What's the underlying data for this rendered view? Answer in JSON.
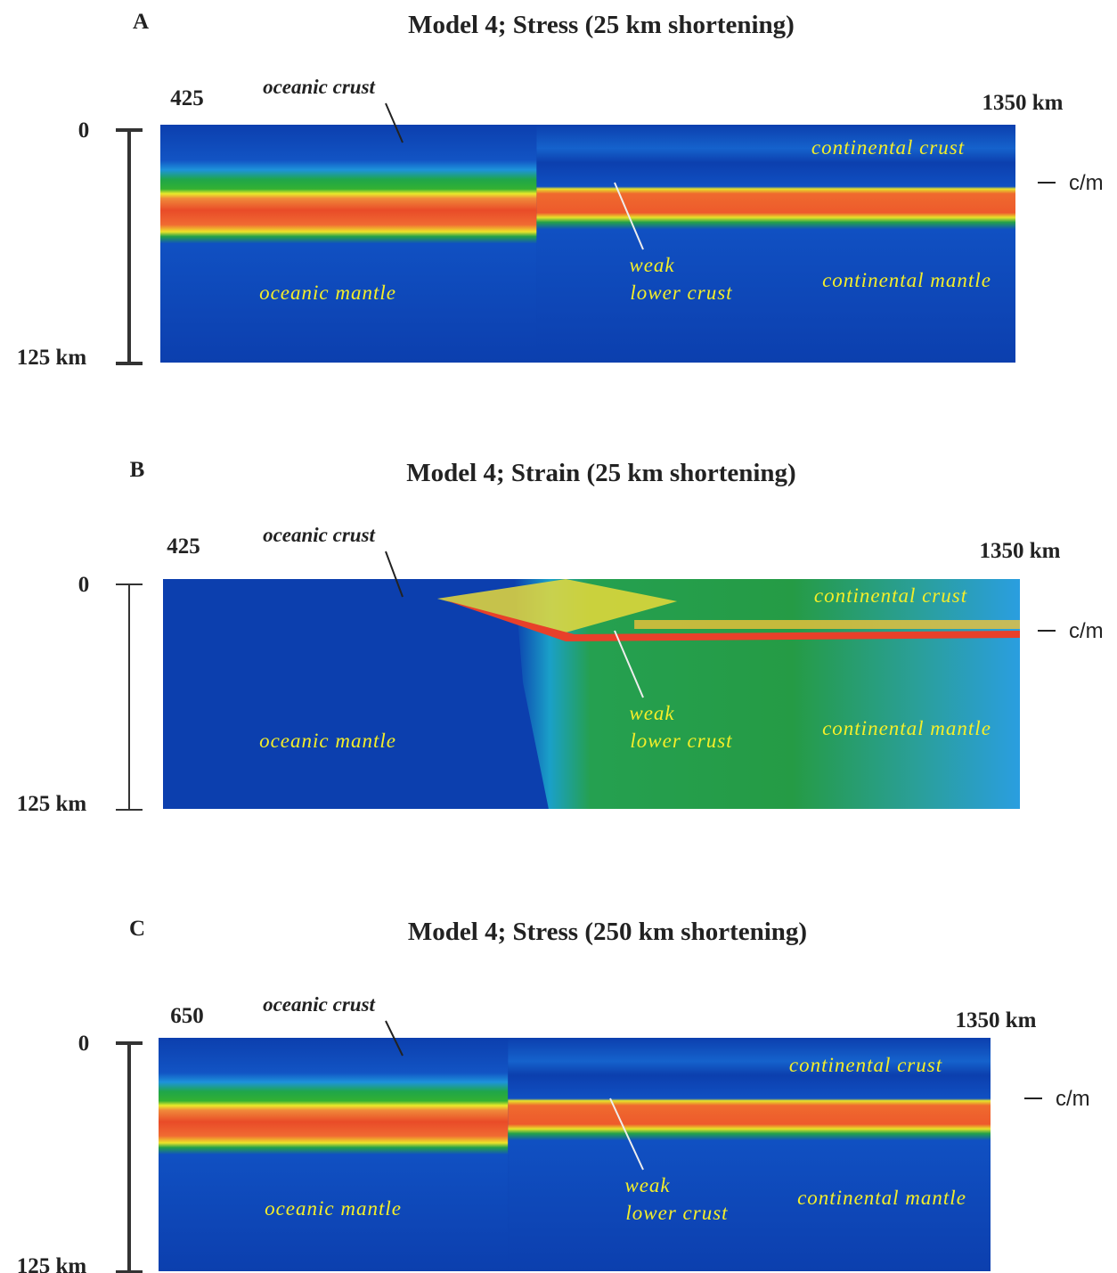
{
  "panels": [
    {
      "letter": "A",
      "title": "Model 4; Stress (25 km shortening)",
      "x_start": "425",
      "x_end": "1350 km",
      "depth_top": "0",
      "depth_bottom": "125 km",
      "interface": "c/m",
      "labels": {
        "oceanic_crust": "oceanic crust",
        "continental_crust": "continental crust",
        "weak": "weak",
        "lower_crust": "lower crust",
        "oceanic_mantle": "oceanic mantle",
        "continental_mantle": "continental mantle"
      }
    },
    {
      "letter": "B",
      "title": "Model 4; Strain (25 km shortening)",
      "x_start": "425",
      "x_end": "1350 km",
      "depth_top": "0",
      "depth_bottom": "125 km",
      "interface": "c/m",
      "labels": {
        "oceanic_crust": "oceanic crust",
        "continental_crust": "continental crust",
        "weak": "weak",
        "lower_crust": "lower crust",
        "oceanic_mantle": "oceanic mantle",
        "continental_mantle": "continental mantle"
      }
    },
    {
      "letter": "C",
      "title": "Model 4; Stress (250 km shortening)",
      "x_start": "650",
      "x_end": "1350 km",
      "depth_top": "0",
      "depth_bottom": "125 km",
      "interface": "c/m",
      "labels": {
        "oceanic_crust": "oceanic crust",
        "continental_crust": "continental crust",
        "weak": "weak",
        "lower_crust": "lower crust",
        "oceanic_mantle": "oceanic mantle",
        "continental_mantle": "continental mantle"
      }
    }
  ]
}
